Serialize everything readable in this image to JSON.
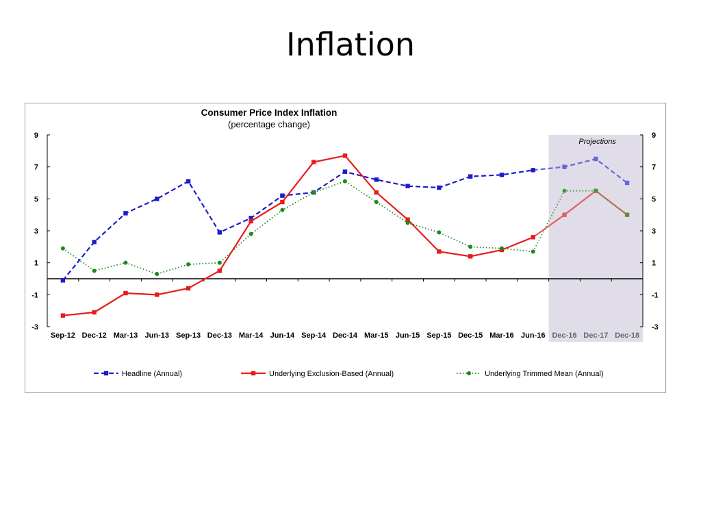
{
  "slide": {
    "title": "Inflation"
  },
  "chart_data": {
    "type": "line",
    "title": "Consumer Price Index Inflation",
    "subtitle": "(percentage change)",
    "xlabel": "",
    "ylabel": "",
    "ylim": [
      -3,
      9
    ],
    "yticks": [
      -3,
      -1,
      1,
      3,
      5,
      7,
      9
    ],
    "grid": false,
    "categories": [
      "Sep-12",
      "Dec-12",
      "Mar-13",
      "Jun-13",
      "Sep-13",
      "Dec-13",
      "Mar-14",
      "Jun-14",
      "Sep-14",
      "Dec-14",
      "Mar-15",
      "Jun-15",
      "Sep-15",
      "Dec-15",
      "Mar-16",
      "Jun-16",
      "Dec-16",
      "Dec-17",
      "Dec-18"
    ],
    "projection_start_index": 16,
    "projection_label": "Projections",
    "legend_position": "bottom",
    "series": [
      {
        "name": "Headline (Annual)",
        "color": "#1c1ccc",
        "projection_color": "#6666e0",
        "style": "dashed",
        "marker": "square",
        "values": [
          -0.1,
          2.3,
          4.1,
          5.0,
          6.1,
          2.9,
          3.8,
          5.2,
          5.4,
          6.7,
          6.2,
          5.8,
          5.7,
          6.4,
          6.5,
          6.8,
          7.0,
          7.5,
          6.0
        ]
      },
      {
        "name": "Underlying Exclusion-Based (Annual)",
        "color": "#e81c1c",
        "projection_color": "#e06060",
        "style": "solid",
        "marker": "square",
        "values": [
          -2.3,
          -2.1,
          -0.9,
          -1.0,
          -0.6,
          0.5,
          3.6,
          4.8,
          7.3,
          7.7,
          5.4,
          3.7,
          1.7,
          1.4,
          1.8,
          2.6,
          4.0,
          5.5,
          4.0
        ]
      },
      {
        "name": "Underlying Trimmed Mean (Annual)",
        "color": "#1a8a1a",
        "projection_color": "#3a9a3a",
        "style": "dotted",
        "marker": "circle",
        "values": [
          1.9,
          0.5,
          1.0,
          0.3,
          0.9,
          1.0,
          2.8,
          4.3,
          5.4,
          6.1,
          4.8,
          3.5,
          2.9,
          2.0,
          1.9,
          1.7,
          5.5,
          5.5,
          4.0
        ]
      }
    ]
  }
}
